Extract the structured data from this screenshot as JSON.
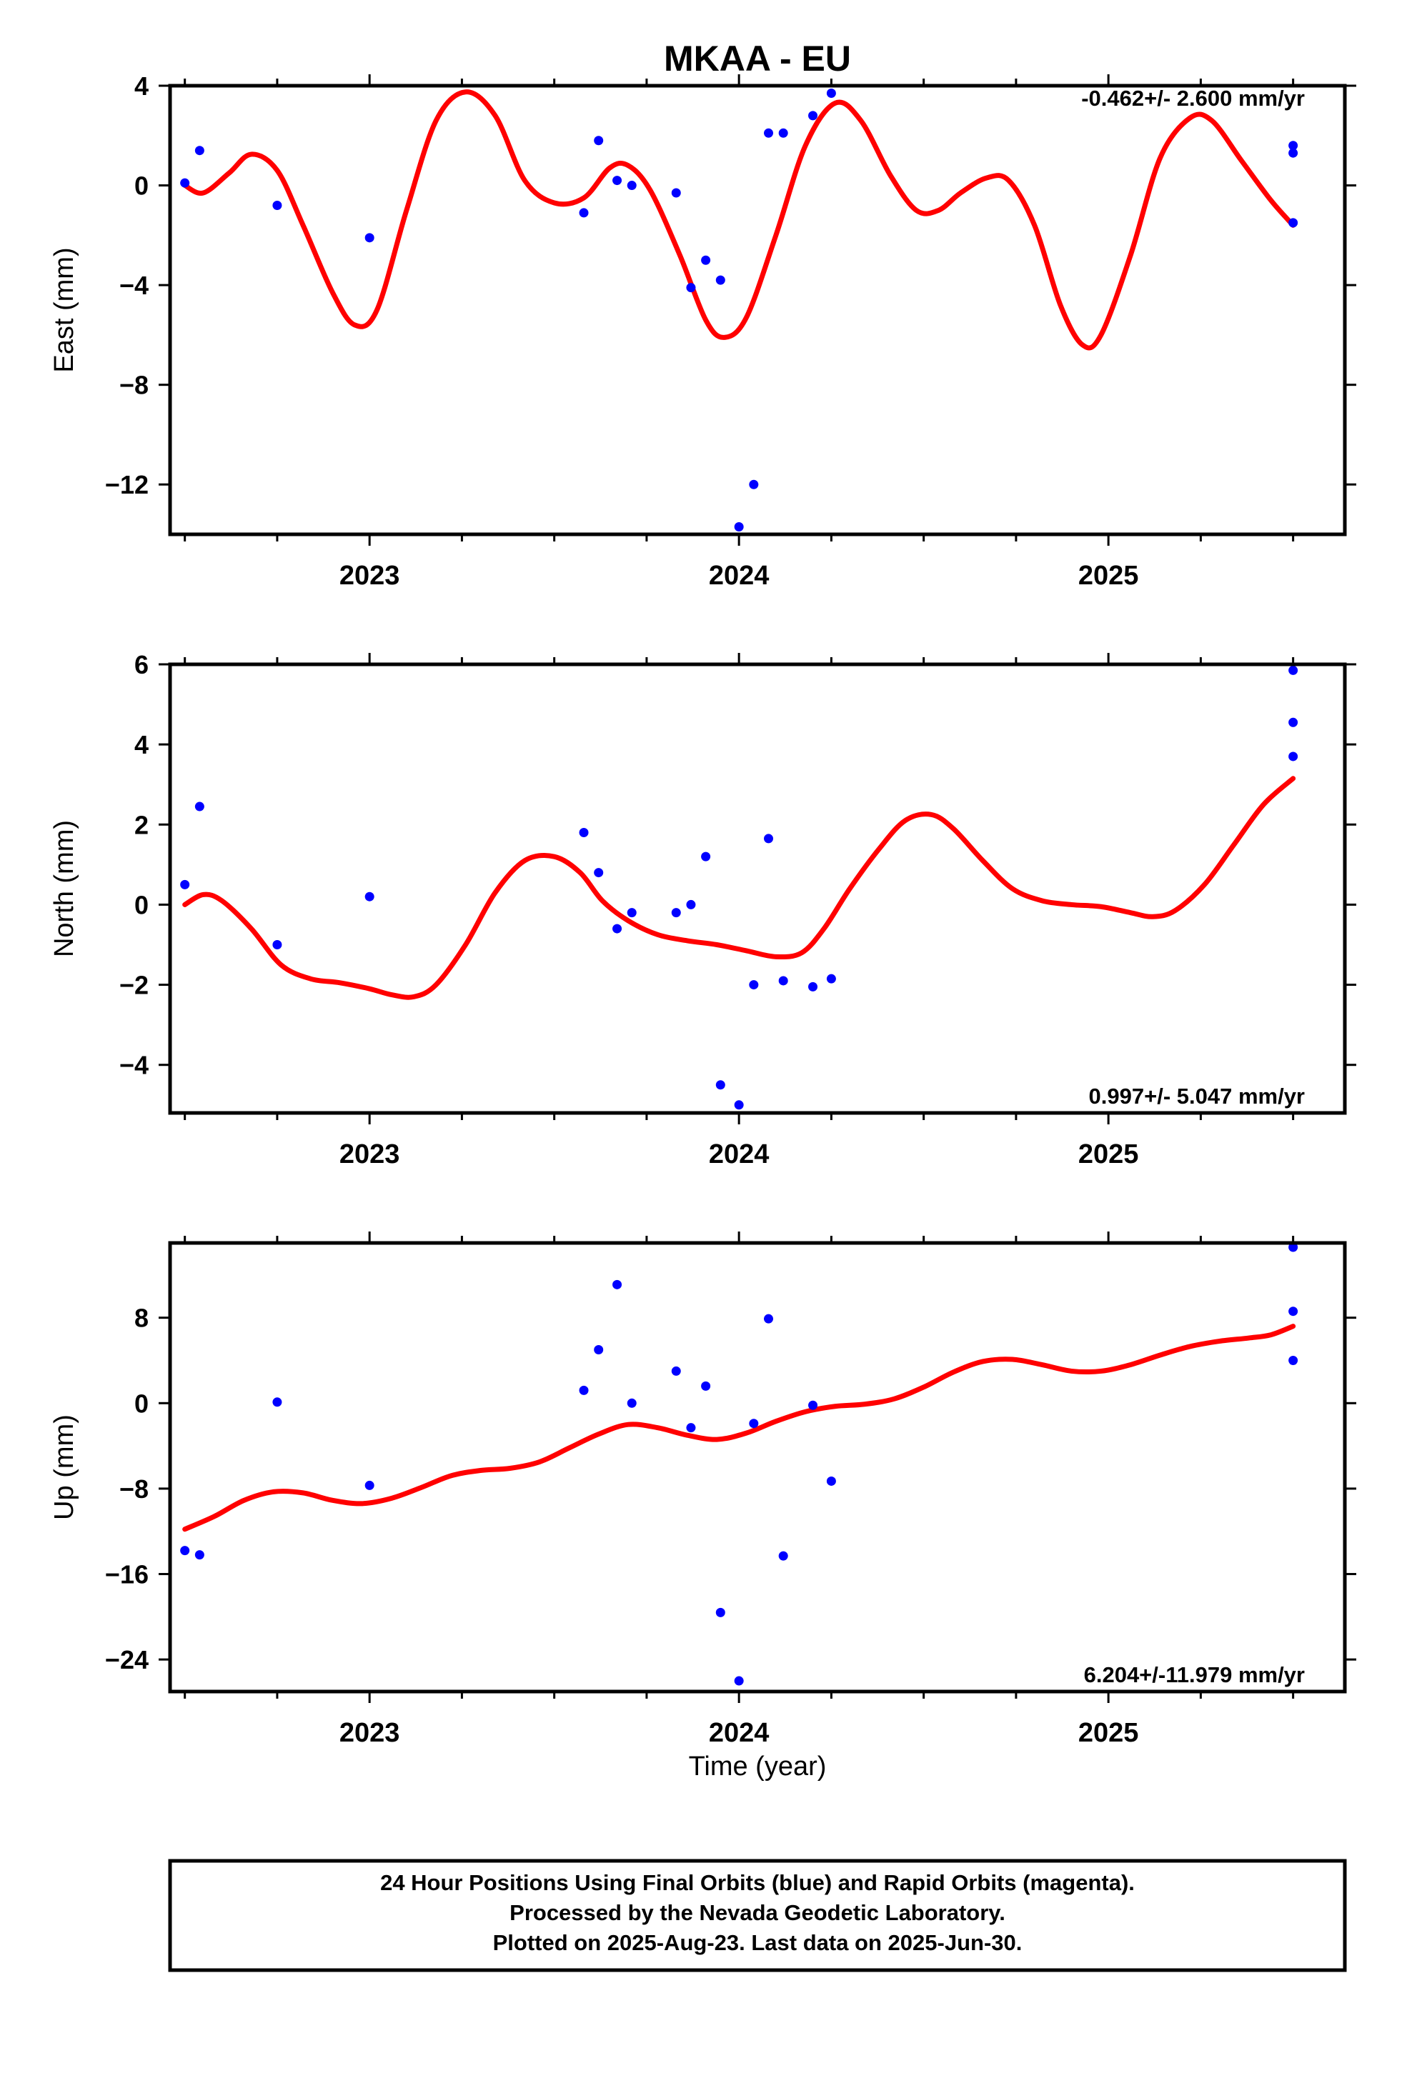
{
  "title": "MKAA - EU",
  "xlabel": "Time (year)",
  "footer": {
    "lines": [
      "24 Hour Positions Using Final Orbits (blue) and Rapid Orbits (magenta).",
      "Processed by the Nevada Geodetic Laboratory.",
      "Plotted on 2025-Aug-23. Last data on 2025-Jun-30."
    ]
  },
  "colors": {
    "points": "#0000ff",
    "model": "#ff0000",
    "axes": "#000000"
  },
  "chart_data": [
    {
      "type": "scatter",
      "ylabel": "East (mm)",
      "rate": "-0.462+/- 2.600 mm/yr",
      "xlim": [
        2022.46,
        2025.64
      ],
      "ylim": [
        -14.0,
        4.0
      ],
      "yticks": [
        4,
        0,
        -4,
        -8,
        -12
      ],
      "ytick_labels": [
        "4",
        "0",
        "−4",
        "−8",
        "−12"
      ],
      "xticks": [
        2023,
        2024,
        2025
      ],
      "xtick_labels": [
        "2023",
        "2024",
        "2025"
      ],
      "points": [
        [
          2022.5,
          0.1
        ],
        [
          2022.54,
          1.4
        ],
        [
          2022.75,
          -0.8
        ],
        [
          2023.0,
          -2.1
        ],
        [
          2023.58,
          -1.1
        ],
        [
          2023.62,
          1.8
        ],
        [
          2023.67,
          0.2
        ],
        [
          2023.71,
          0.0
        ],
        [
          2023.83,
          -0.3
        ],
        [
          2023.87,
          -4.1
        ],
        [
          2023.91,
          -3.0
        ],
        [
          2023.95,
          -3.8
        ],
        [
          2024.0,
          -13.7
        ],
        [
          2024.04,
          -12.0
        ],
        [
          2024.08,
          2.1
        ],
        [
          2024.12,
          2.1
        ],
        [
          2024.2,
          2.8
        ],
        [
          2024.25,
          3.7
        ],
        [
          2025.5,
          1.6
        ],
        [
          2025.5,
          1.3
        ],
        [
          2025.5,
          -1.5
        ]
      ],
      "model": [
        [
          2022.5,
          0.0
        ],
        [
          2022.55,
          -0.3
        ],
        [
          2022.62,
          0.5
        ],
        [
          2022.68,
          1.25
        ],
        [
          2022.75,
          0.6
        ],
        [
          2022.82,
          -1.6
        ],
        [
          2022.9,
          -4.3
        ],
        [
          2022.96,
          -5.6
        ],
        [
          2023.02,
          -5.0
        ],
        [
          2023.1,
          -1.0
        ],
        [
          2023.18,
          2.6
        ],
        [
          2023.26,
          3.75
        ],
        [
          2023.34,
          2.8
        ],
        [
          2023.42,
          0.2
        ],
        [
          2023.5,
          -0.7
        ],
        [
          2023.58,
          -0.5
        ],
        [
          2023.65,
          0.7
        ],
        [
          2023.7,
          0.8
        ],
        [
          2023.76,
          -0.2
        ],
        [
          2023.84,
          -2.8
        ],
        [
          2023.91,
          -5.4
        ],
        [
          2023.96,
          -6.1
        ],
        [
          2024.02,
          -5.3
        ],
        [
          2024.1,
          -2.0
        ],
        [
          2024.18,
          1.6
        ],
        [
          2024.26,
          3.3
        ],
        [
          2024.33,
          2.6
        ],
        [
          2024.41,
          0.4
        ],
        [
          2024.48,
          -1.0
        ],
        [
          2024.54,
          -1.0
        ],
        [
          2024.6,
          -0.3
        ],
        [
          2024.67,
          0.3
        ],
        [
          2024.73,
          0.2
        ],
        [
          2024.8,
          -1.6
        ],
        [
          2024.87,
          -4.8
        ],
        [
          2024.93,
          -6.4
        ],
        [
          2024.98,
          -6.0
        ],
        [
          2025.06,
          -2.8
        ],
        [
          2025.14,
          1.1
        ],
        [
          2025.22,
          2.7
        ],
        [
          2025.28,
          2.6
        ],
        [
          2025.36,
          1.0
        ],
        [
          2025.44,
          -0.6
        ],
        [
          2025.5,
          -1.6
        ]
      ]
    },
    {
      "type": "scatter",
      "ylabel": "North (mm)",
      "rate": "0.997+/- 5.047 mm/yr",
      "xlim": [
        2022.46,
        2025.64
      ],
      "ylim": [
        -5.2,
        6.0
      ],
      "yticks": [
        6,
        4,
        2,
        0,
        -2,
        -4
      ],
      "ytick_labels": [
        "6",
        "4",
        "2",
        "0",
        "−2",
        "−4"
      ],
      "xticks": [
        2023,
        2024,
        2025
      ],
      "xtick_labels": [
        "2023",
        "2024",
        "2025"
      ],
      "points": [
        [
          2022.5,
          0.5
        ],
        [
          2022.54,
          2.45
        ],
        [
          2022.75,
          -1.0
        ],
        [
          2023.0,
          0.2
        ],
        [
          2023.58,
          1.8
        ],
        [
          2023.62,
          0.8
        ],
        [
          2023.67,
          -0.6
        ],
        [
          2023.71,
          -0.2
        ],
        [
          2023.83,
          -0.2
        ],
        [
          2023.87,
          0.0
        ],
        [
          2023.91,
          1.2
        ],
        [
          2023.95,
          -4.5
        ],
        [
          2024.0,
          -5.0
        ],
        [
          2024.04,
          -2.0
        ],
        [
          2024.08,
          1.65
        ],
        [
          2024.12,
          -1.9
        ],
        [
          2024.2,
          -2.05
        ],
        [
          2024.25,
          -1.85
        ],
        [
          2025.5,
          5.85
        ],
        [
          2025.5,
          4.55
        ],
        [
          2025.5,
          3.7
        ]
      ],
      "model": [
        [
          2022.5,
          0.0
        ],
        [
          2022.55,
          0.25
        ],
        [
          2022.6,
          0.1
        ],
        [
          2022.68,
          -0.6
        ],
        [
          2022.76,
          -1.5
        ],
        [
          2022.84,
          -1.85
        ],
        [
          2022.92,
          -1.95
        ],
        [
          2023.0,
          -2.1
        ],
        [
          2023.06,
          -2.25
        ],
        [
          2023.12,
          -2.3
        ],
        [
          2023.18,
          -2.0
        ],
        [
          2023.26,
          -1.0
        ],
        [
          2023.34,
          0.3
        ],
        [
          2023.42,
          1.1
        ],
        [
          2023.5,
          1.2
        ],
        [
          2023.57,
          0.8
        ],
        [
          2023.63,
          0.1
        ],
        [
          2023.7,
          -0.4
        ],
        [
          2023.78,
          -0.75
        ],
        [
          2023.86,
          -0.9
        ],
        [
          2023.94,
          -1.0
        ],
        [
          2024.02,
          -1.15
        ],
        [
          2024.1,
          -1.3
        ],
        [
          2024.17,
          -1.2
        ],
        [
          2024.23,
          -0.6
        ],
        [
          2024.3,
          0.4
        ],
        [
          2024.38,
          1.4
        ],
        [
          2024.45,
          2.1
        ],
        [
          2024.52,
          2.25
        ],
        [
          2024.58,
          1.9
        ],
        [
          2024.66,
          1.1
        ],
        [
          2024.74,
          0.4
        ],
        [
          2024.82,
          0.1
        ],
        [
          2024.9,
          0.0
        ],
        [
          2024.98,
          -0.05
        ],
        [
          2025.06,
          -0.2
        ],
        [
          2025.12,
          -0.3
        ],
        [
          2025.18,
          -0.15
        ],
        [
          2025.26,
          0.5
        ],
        [
          2025.34,
          1.5
        ],
        [
          2025.42,
          2.5
        ],
        [
          2025.5,
          3.15
        ]
      ]
    },
    {
      "type": "scatter",
      "ylabel": "Up (mm)",
      "rate": "6.204+/-11.979 mm/yr",
      "xlim": [
        2022.46,
        2025.64
      ],
      "ylim": [
        -27.0,
        15.0
      ],
      "yticks": [
        8,
        0,
        -8,
        -16,
        -24
      ],
      "ytick_labels": [
        "8",
        "0",
        "−8",
        "−16",
        "−24"
      ],
      "xticks": [
        2023,
        2024,
        2025
      ],
      "xtick_labels": [
        "2023",
        "2024",
        "2025"
      ],
      "points": [
        [
          2022.5,
          -13.8
        ],
        [
          2022.54,
          -14.2
        ],
        [
          2022.75,
          0.1
        ],
        [
          2023.0,
          -7.7
        ],
        [
          2023.58,
          1.2
        ],
        [
          2023.62,
          5.0
        ],
        [
          2023.67,
          11.1
        ],
        [
          2023.71,
          0.0
        ],
        [
          2023.83,
          3.0
        ],
        [
          2023.87,
          -2.3
        ],
        [
          2023.91,
          1.6
        ],
        [
          2023.95,
          -19.6
        ],
        [
          2024.0,
          -26.0
        ],
        [
          2024.04,
          -1.9
        ],
        [
          2024.08,
          7.9
        ],
        [
          2024.12,
          -14.3
        ],
        [
          2024.2,
          -0.2
        ],
        [
          2024.25,
          -7.3
        ],
        [
          2025.5,
          14.6
        ],
        [
          2025.5,
          8.6
        ],
        [
          2025.5,
          4.0
        ]
      ],
      "model": [
        [
          2022.5,
          -11.8
        ],
        [
          2022.58,
          -10.6
        ],
        [
          2022.66,
          -9.1
        ],
        [
          2022.74,
          -8.3
        ],
        [
          2022.82,
          -8.4
        ],
        [
          2022.9,
          -9.1
        ],
        [
          2022.98,
          -9.4
        ],
        [
          2023.06,
          -8.9
        ],
        [
          2023.14,
          -7.9
        ],
        [
          2023.22,
          -6.8
        ],
        [
          2023.3,
          -6.3
        ],
        [
          2023.38,
          -6.1
        ],
        [
          2023.46,
          -5.5
        ],
        [
          2023.54,
          -4.2
        ],
        [
          2023.62,
          -2.9
        ],
        [
          2023.7,
          -2.0
        ],
        [
          2023.78,
          -2.3
        ],
        [
          2023.86,
          -3.0
        ],
        [
          2023.94,
          -3.4
        ],
        [
          2024.02,
          -2.8
        ],
        [
          2024.1,
          -1.7
        ],
        [
          2024.18,
          -0.8
        ],
        [
          2024.26,
          -0.3
        ],
        [
          2024.34,
          -0.1
        ],
        [
          2024.42,
          0.4
        ],
        [
          2024.5,
          1.5
        ],
        [
          2024.58,
          2.9
        ],
        [
          2024.66,
          3.9
        ],
        [
          2024.74,
          4.1
        ],
        [
          2024.82,
          3.6
        ],
        [
          2024.9,
          3.0
        ],
        [
          2024.98,
          3.0
        ],
        [
          2025.06,
          3.6
        ],
        [
          2025.14,
          4.5
        ],
        [
          2025.22,
          5.3
        ],
        [
          2025.3,
          5.8
        ],
        [
          2025.38,
          6.1
        ],
        [
          2025.44,
          6.4
        ],
        [
          2025.5,
          7.2
        ]
      ]
    }
  ]
}
